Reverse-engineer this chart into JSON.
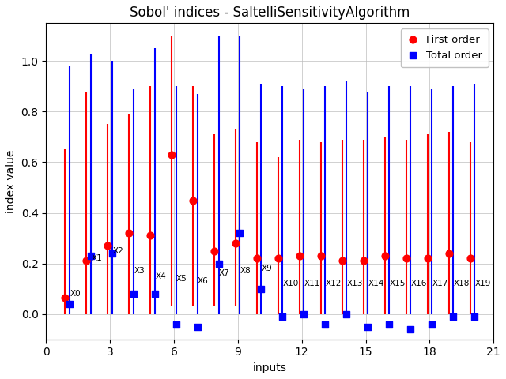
{
  "title": "Sobol' indices - SaltelliSensitivityAlgorithm",
  "xlabel": "inputs",
  "ylabel": "index value",
  "xlim": [
    0,
    21
  ],
  "ylim": [
    -0.1,
    1.15
  ],
  "inputs": [
    1,
    2,
    3,
    4,
    5,
    6,
    7,
    8,
    9,
    10,
    11,
    12,
    13,
    14,
    15,
    16,
    17,
    18,
    19,
    20
  ],
  "labels": [
    "X0",
    "X1",
    "X2",
    "X3",
    "X4",
    "X5",
    "X6",
    "X7",
    "X8",
    "X9",
    "X10",
    "X11",
    "X12",
    "X13",
    "X14",
    "X15",
    "X16",
    "X17",
    "X18",
    "X19"
  ],
  "first_order": [
    0.065,
    0.21,
    0.27,
    0.32,
    0.31,
    0.63,
    0.45,
    0.25,
    0.28,
    0.22,
    0.22,
    0.23,
    0.23,
    0.21,
    0.21,
    0.23,
    0.22,
    0.22,
    0.24,
    0.22
  ],
  "first_order_low": [
    0.0,
    0.0,
    0.0,
    0.0,
    0.0,
    0.03,
    0.03,
    0.03,
    0.03,
    0.0,
    0.0,
    0.0,
    0.0,
    0.0,
    0.0,
    0.0,
    0.0,
    0.0,
    0.0,
    0.0
  ],
  "first_order_high": [
    0.65,
    0.88,
    0.75,
    0.79,
    0.9,
    1.1,
    0.9,
    0.71,
    0.73,
    0.68,
    0.62,
    0.69,
    0.68,
    0.69,
    0.69,
    0.7,
    0.69,
    0.71,
    0.72,
    0.68
  ],
  "total_order": [
    0.04,
    0.23,
    0.24,
    0.08,
    0.08,
    -0.04,
    -0.05,
    0.2,
    0.32,
    0.1,
    -0.01,
    0.0,
    -0.04,
    0.0,
    -0.05,
    -0.04,
    -0.06,
    -0.04,
    -0.01,
    -0.01
  ],
  "total_order_low": [
    0.0,
    0.0,
    0.0,
    0.0,
    0.0,
    0.0,
    0.0,
    0.0,
    0.0,
    0.0,
    0.0,
    0.0,
    0.0,
    0.0,
    0.0,
    0.0,
    0.0,
    0.0,
    0.0,
    0.0
  ],
  "total_order_high": [
    0.98,
    1.03,
    1.0,
    0.89,
    1.05,
    0.9,
    0.87,
    1.1,
    1.1,
    0.91,
    0.9,
    0.89,
    0.9,
    0.92,
    0.88,
    0.9,
    0.9,
    0.89,
    0.9,
    0.91
  ],
  "label_y_positions": [
    0.08,
    0.22,
    0.25,
    0.17,
    0.15,
    0.14,
    0.13,
    0.16,
    0.17,
    0.18,
    0.12,
    0.12,
    0.12,
    0.12,
    0.12,
    0.12,
    0.12,
    0.12,
    0.12,
    0.12
  ],
  "first_color": "#ff0000",
  "total_color": "#0000ff",
  "bg_color": "#ffffff",
  "grid_color": "#bbbbbb",
  "title_fontsize": 12,
  "axis_fontsize": 10,
  "label_fontsize": 7.5
}
